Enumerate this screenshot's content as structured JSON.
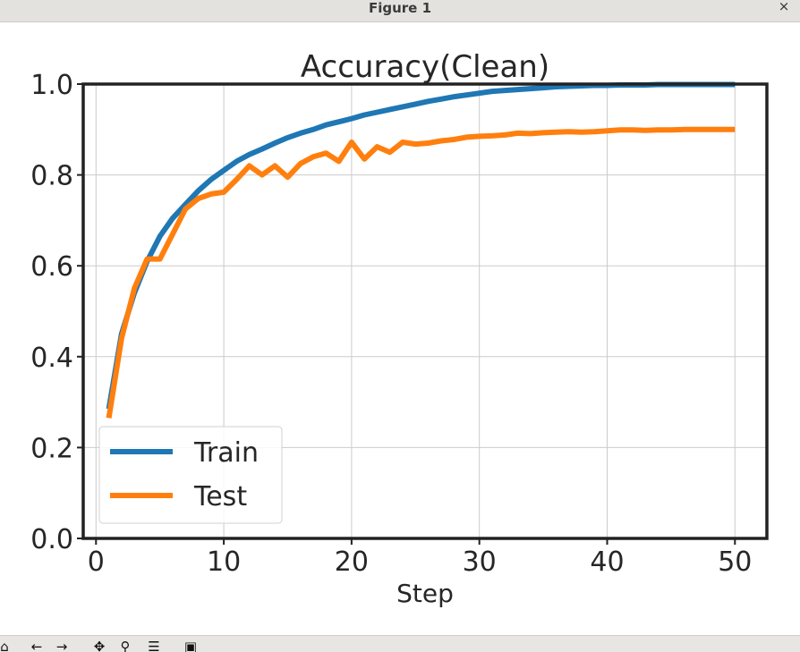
{
  "window": {
    "title": "Figure 1",
    "close_glyph": "×"
  },
  "toolbar": {
    "buttons": [
      {
        "name": "home-icon",
        "glyph": "⌂"
      },
      {
        "name": "back-arrow-icon",
        "glyph": "←"
      },
      {
        "name": "forward-arrow-icon",
        "glyph": "→"
      },
      {
        "name": "pan-icon",
        "glyph": "✥"
      },
      {
        "name": "zoom-icon",
        "glyph": "⚲"
      },
      {
        "name": "configure-subplots-icon",
        "glyph": "☰"
      },
      {
        "name": "save-icon",
        "glyph": "▣"
      }
    ]
  },
  "chart_data": {
    "type": "line",
    "title": "Accuracy(Clean)",
    "xlabel": "Step",
    "ylabel": "",
    "xlim": [
      -1,
      52.5
    ],
    "ylim": [
      0.0,
      1.0
    ],
    "xticks": [
      0,
      10,
      20,
      30,
      40,
      50
    ],
    "yticks": [
      0.0,
      0.2,
      0.4,
      0.6,
      0.8,
      1.0
    ],
    "xtick_labels": [
      "0",
      "10",
      "20",
      "30",
      "40",
      "50"
    ],
    "ytick_labels": [
      "0.0",
      "0.2",
      "0.4",
      "0.6",
      "0.8",
      "1.0"
    ],
    "grid": true,
    "legend_position": "lower-left",
    "x": [
      1,
      2,
      3,
      4,
      5,
      6,
      7,
      8,
      9,
      10,
      11,
      12,
      13,
      14,
      15,
      16,
      17,
      18,
      19,
      20,
      21,
      22,
      23,
      24,
      25,
      26,
      27,
      28,
      29,
      30,
      31,
      32,
      33,
      34,
      35,
      36,
      37,
      38,
      39,
      40,
      41,
      42,
      43,
      44,
      45,
      46,
      47,
      48,
      49,
      50
    ],
    "series": [
      {
        "name": "Train",
        "color": "#1f77b4",
        "values": [
          0.285,
          0.45,
          0.54,
          0.61,
          0.665,
          0.705,
          0.735,
          0.765,
          0.79,
          0.81,
          0.83,
          0.845,
          0.857,
          0.87,
          0.882,
          0.892,
          0.9,
          0.91,
          0.917,
          0.924,
          0.932,
          0.938,
          0.944,
          0.95,
          0.956,
          0.962,
          0.967,
          0.972,
          0.976,
          0.98,
          0.984,
          0.986,
          0.988,
          0.99,
          0.992,
          0.994,
          0.995,
          0.996,
          0.997,
          0.997,
          0.998,
          0.998,
          0.998,
          0.999,
          0.999,
          0.999,
          0.999,
          0.999,
          0.999,
          0.999
        ]
      },
      {
        "name": "Test",
        "color": "#ff7f0e",
        "values": [
          0.265,
          0.44,
          0.55,
          0.615,
          0.615,
          0.67,
          0.725,
          0.748,
          0.758,
          0.762,
          0.79,
          0.82,
          0.8,
          0.82,
          0.795,
          0.825,
          0.84,
          0.848,
          0.83,
          0.872,
          0.835,
          0.862,
          0.85,
          0.872,
          0.868,
          0.87,
          0.875,
          0.878,
          0.883,
          0.885,
          0.886,
          0.888,
          0.892,
          0.891,
          0.893,
          0.894,
          0.895,
          0.894,
          0.895,
          0.897,
          0.899,
          0.899,
          0.898,
          0.899,
          0.899,
          0.9,
          0.9,
          0.9,
          0.9,
          0.9
        ]
      }
    ]
  }
}
